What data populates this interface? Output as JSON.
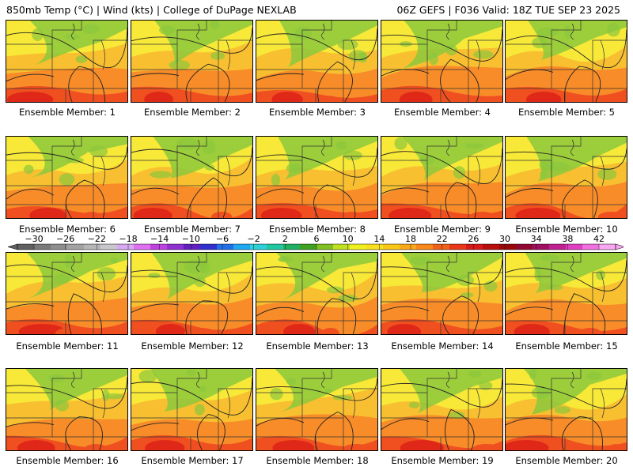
{
  "header": {
    "left": "850mb Temp (°C) | Wind (kts) | College of DuPage NEXLAB",
    "right": "06Z GEFS | F036 Valid: 18Z TUE SEP 23 2025"
  },
  "panels": [
    {
      "label": "Ensemble Member: 1"
    },
    {
      "label": "Ensemble Member: 2"
    },
    {
      "label": "Ensemble Member: 3"
    },
    {
      "label": "Ensemble Member: 4"
    },
    {
      "label": "Ensemble Member: 5"
    },
    {
      "label": "Ensemble Member: 6"
    },
    {
      "label": "Ensemble Member: 7"
    },
    {
      "label": "Ensemble Member: 8"
    },
    {
      "label": "Ensemble Member: 9"
    },
    {
      "label": "Ensemble Member: 10"
    },
    {
      "label": "Ensemble Member: 11"
    },
    {
      "label": "Ensemble Member: 12"
    },
    {
      "label": "Ensemble Member: 13"
    },
    {
      "label": "Ensemble Member: 14"
    },
    {
      "label": "Ensemble Member: 15"
    },
    {
      "label": "Ensemble Member: 16"
    },
    {
      "label": "Ensemble Member: 17"
    },
    {
      "label": "Ensemble Member: 18"
    },
    {
      "label": "Ensemble Member: 19"
    },
    {
      "label": "Ensemble Member: 20"
    }
  ],
  "colorbar": {
    "ticks": [
      "−30",
      "−26",
      "−22",
      "−18",
      "−14",
      "−10",
      "−6",
      "−2",
      "2",
      "6",
      "10",
      "14",
      "18",
      "22",
      "26",
      "30",
      "34",
      "38",
      "42"
    ],
    "colors": [
      "#606060",
      "#7a7a7a",
      "#8e8e8e",
      "#a2a2a2",
      "#b6b6b6",
      "#c8c8cc",
      "#d8a8f0",
      "#e070f0",
      "#c040e0",
      "#9030d0",
      "#6020c0",
      "#3030d0",
      "#2070e8",
      "#20a8f0",
      "#30d0d8",
      "#20c8a0",
      "#20b060",
      "#40a020",
      "#80c020",
      "#c0e020",
      "#f0f020",
      "#f8e020",
      "#f8c818",
      "#f8a818",
      "#f88818",
      "#f06018",
      "#e83818",
      "#d81818",
      "#b80e0e",
      "#980808",
      "#900830",
      "#a01060",
      "#c02090",
      "#e040c0",
      "#f070e0",
      "#f8a8f0"
    ]
  },
  "colors": {
    "cold_green": "#8cc83c",
    "yellow": "#f8e838",
    "gold": "#f8c030",
    "orange": "#f88c28",
    "red_orange": "#f05020",
    "red": "#e02818"
  }
}
